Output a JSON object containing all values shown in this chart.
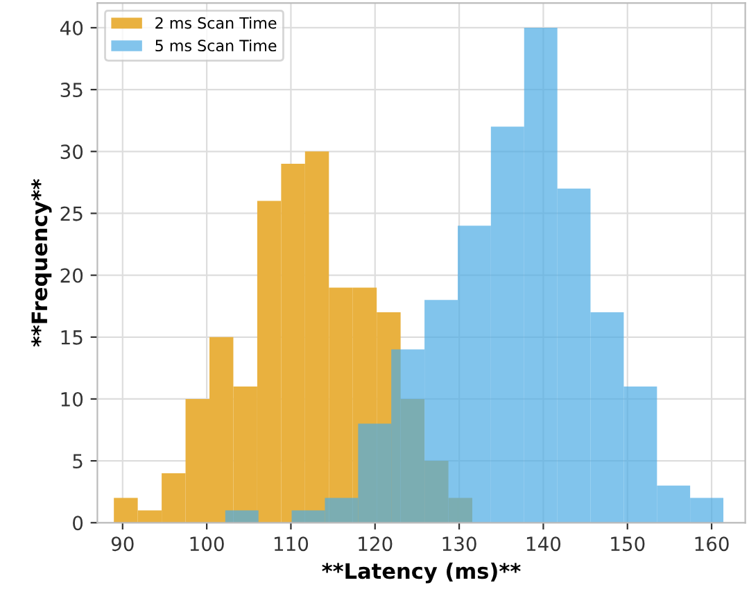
{
  "chart_data": {
    "type": "histogram",
    "xlabel": "**Latency (ms)**",
    "ylabel": "**Frequency**",
    "xlim": [
      87,
      164
    ],
    "ylim": [
      0,
      42
    ],
    "xticks": [
      90,
      100,
      110,
      120,
      130,
      140,
      150,
      160
    ],
    "yticks": [
      0,
      5,
      10,
      15,
      20,
      25,
      30,
      35,
      40
    ],
    "grid": true,
    "legend": "top left",
    "bins": [
      88.96,
      91.8,
      94.64,
      97.48,
      100.32,
      103.16,
      106.0,
      108.84,
      111.68,
      114.52,
      117.36,
      120.2,
      123.04,
      125.88,
      128.72,
      131.56
    ],
    "series": [
      {
        "name": "2 ms Scan Time",
        "color": "#e9b13f",
        "values": [
          2,
          1,
          4,
          10,
          15,
          11,
          26,
          29,
          30,
          19,
          19,
          17,
          10,
          5,
          2
        ]
      },
      {
        "name": "5 ms Scan Time",
        "color": "#82c4ec",
        "bins": [
          102.2,
          106.15,
          110.09,
          114.04,
          117.99,
          121.93,
          125.88,
          129.83,
          133.77,
          137.72,
          141.67,
          145.61,
          149.56,
          153.51,
          157.45,
          161.4
        ],
        "values": [
          1,
          0,
          1,
          2,
          8,
          14,
          18,
          24,
          32,
          40,
          27,
          17,
          11,
          3,
          2
        ]
      }
    ]
  }
}
